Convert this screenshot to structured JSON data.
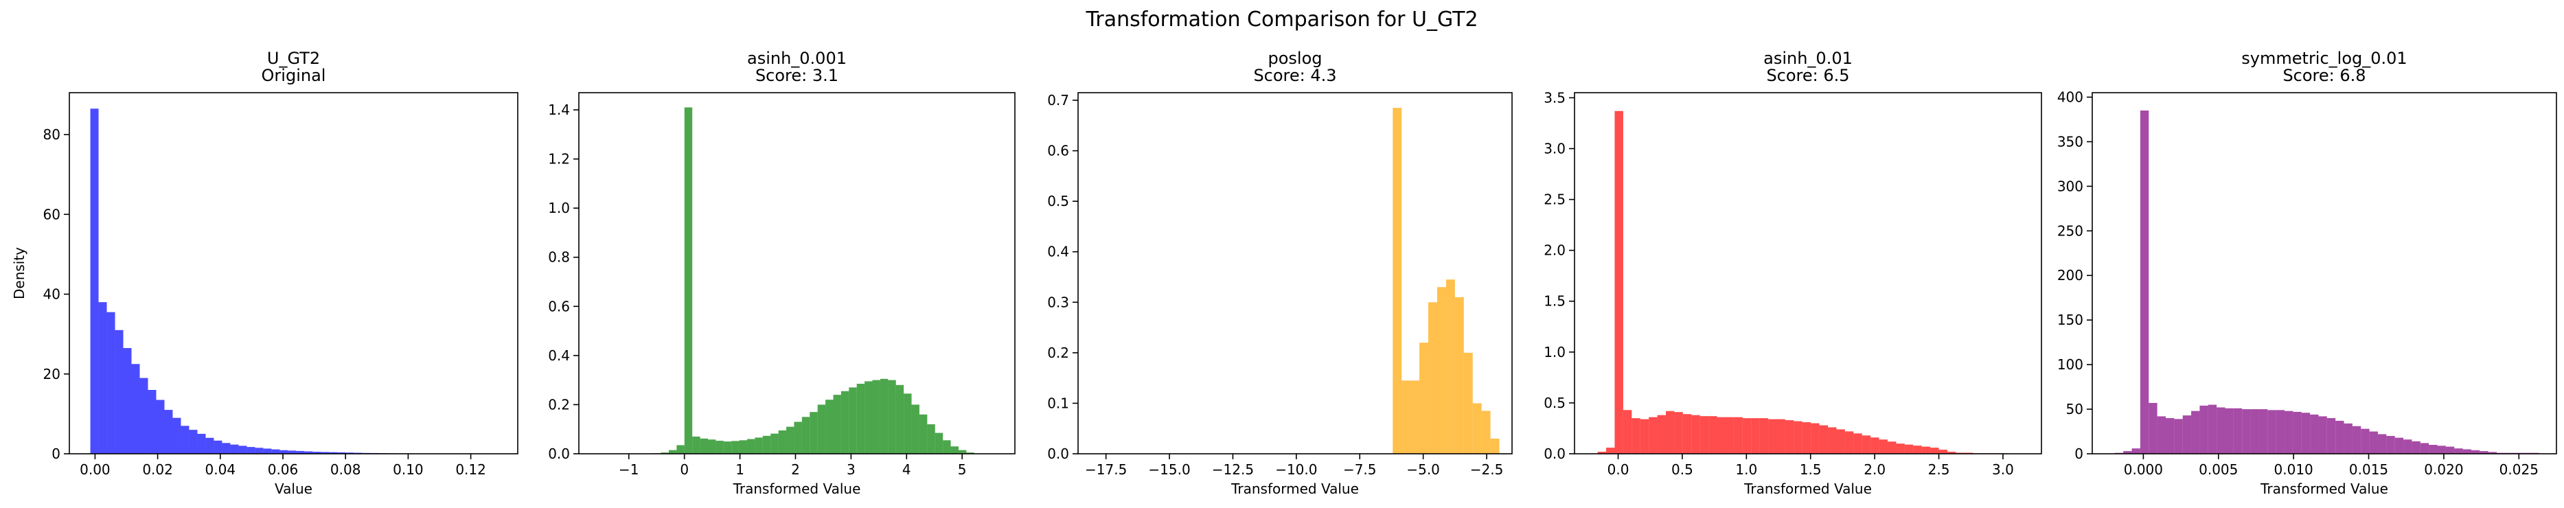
{
  "figure": {
    "suptitle": "Transformation Comparison for U_GT2"
  },
  "chart_data": [
    {
      "type": "bar",
      "title": "U_GT2\nOriginal",
      "xlabel": "Value",
      "ylabel": "Density",
      "color": "#0000ff",
      "xlim": [
        -0.0082,
        0.135
      ],
      "ylim": [
        0,
        90.5
      ],
      "xticks": [
        0.0,
        0.02,
        0.04,
        0.06,
        0.08,
        0.1,
        0.12
      ],
      "xtick_labels": [
        "0.00",
        "0.02",
        "0.04",
        "0.06",
        "0.08",
        "0.10",
        "0.12"
      ],
      "yticks": [
        0,
        20,
        40,
        60,
        80
      ],
      "ytick_labels": [
        "0",
        "20",
        "40",
        "60",
        "80"
      ],
      "bin_start": -0.0015,
      "bin_width": 0.00263,
      "values": [
        86.5,
        38.0,
        35.5,
        31.0,
        26.5,
        22.5,
        19.0,
        16.0,
        13.5,
        11.0,
        9.0,
        7.0,
        6.0,
        5.0,
        4.0,
        3.3,
        2.7,
        2.3,
        2.0,
        1.7,
        1.5,
        1.3,
        1.1,
        0.9,
        0.8,
        0.7,
        0.6,
        0.5,
        0.45,
        0.4,
        0.35,
        0.3,
        0.25,
        0.2,
        0.18,
        0.15,
        0.12,
        0.1,
        0.1,
        0.08,
        0.06,
        0.05,
        0.05,
        0.05,
        0.04,
        0.04,
        0.03,
        0.03,
        0.03,
        0.02
      ]
    },
    {
      "type": "bar",
      "title": "asinh_0.001\nScore: 3.1",
      "xlabel": "Transformed Value",
      "ylabel": "",
      "color": "#008000",
      "xlim": [
        -1.9,
        5.95
      ],
      "ylim": [
        0,
        1.47
      ],
      "xticks": [
        -1,
        0,
        1,
        2,
        3,
        4,
        5
      ],
      "xtick_labels": [
        "−1",
        "0",
        "1",
        "2",
        "3",
        "4",
        "5"
      ],
      "yticks": [
        0.0,
        0.2,
        0.4,
        0.6,
        0.8,
        1.0,
        1.2,
        1.4
      ],
      "ytick_labels": [
        "0.0",
        "0.2",
        "0.4",
        "0.6",
        "0.8",
        "1.0",
        "1.2",
        "1.4"
      ],
      "bin_start": -1.55,
      "bin_width": 0.141,
      "values": [
        0.0,
        0.0,
        0.0,
        0.0,
        0.0,
        0.0,
        0.0,
        0.002,
        0.005,
        0.015,
        0.035,
        1.41,
        0.07,
        0.062,
        0.058,
        0.053,
        0.05,
        0.052,
        0.055,
        0.06,
        0.066,
        0.073,
        0.082,
        0.095,
        0.11,
        0.13,
        0.15,
        0.17,
        0.2,
        0.22,
        0.24,
        0.255,
        0.27,
        0.285,
        0.295,
        0.3,
        0.305,
        0.3,
        0.28,
        0.245,
        0.2,
        0.16,
        0.12,
        0.085,
        0.055,
        0.03,
        0.015,
        0.005
      ]
    },
    {
      "type": "bar",
      "title": "poslog\nScore: 4.3",
      "xlabel": "Transformed Value",
      "ylabel": "",
      "color": "#ffa500",
      "xlim": [
        -18.6,
        -1.5
      ],
      "ylim": [
        0,
        0.715
      ],
      "xticks": [
        -17.5,
        -15.0,
        -12.5,
        -10.0,
        -7.5,
        -5.0,
        -2.5
      ],
      "xtick_labels": [
        "−17.5",
        "−15.0",
        "−12.5",
        "−10.0",
        "−7.5",
        "−5.0",
        "−2.5"
      ],
      "yticks": [
        0.0,
        0.1,
        0.2,
        0.3,
        0.4,
        0.5,
        0.6,
        0.7
      ],
      "ytick_labels": [
        "0.0",
        "0.1",
        "0.2",
        "0.3",
        "0.4",
        "0.5",
        "0.6",
        "0.7"
      ],
      "bin_start": -6.2,
      "bin_width": 0.35,
      "values": [
        0.685,
        0.145,
        0.145,
        0.22,
        0.3,
        0.33,
        0.345,
        0.31,
        0.2,
        0.1,
        0.085,
        0.03
      ]
    },
    {
      "type": "bar",
      "title": "asinh_0.01\nScore: 6.5",
      "xlabel": "Transformed Value",
      "ylabel": "",
      "color": "#ff0000",
      "xlim": [
        -0.34,
        3.3
      ],
      "ylim": [
        0,
        3.55
      ],
      "xticks": [
        0.0,
        0.5,
        1.0,
        1.5,
        2.0,
        2.5,
        3.0
      ],
      "xtick_labels": [
        "0.0",
        "0.5",
        "1.0",
        "1.5",
        "2.0",
        "2.5",
        "3.0"
      ],
      "yticks": [
        0.0,
        0.5,
        1.0,
        1.5,
        2.0,
        2.5,
        3.0,
        3.5
      ],
      "ytick_labels": [
        "0.0",
        "0.5",
        "1.0",
        "1.5",
        "2.0",
        "2.5",
        "3.0",
        "3.5"
      ],
      "bin_start": -0.16,
      "bin_width": 0.0665,
      "values": [
        0.02,
        0.06,
        3.37,
        0.43,
        0.35,
        0.34,
        0.36,
        0.38,
        0.42,
        0.41,
        0.39,
        0.38,
        0.37,
        0.37,
        0.36,
        0.36,
        0.36,
        0.35,
        0.35,
        0.35,
        0.34,
        0.34,
        0.33,
        0.32,
        0.31,
        0.3,
        0.28,
        0.26,
        0.24,
        0.22,
        0.2,
        0.18,
        0.16,
        0.14,
        0.12,
        0.1,
        0.09,
        0.08,
        0.07,
        0.06,
        0.04,
        0.02,
        0.01,
        0.01,
        0.005,
        0.005,
        0.005,
        0.005,
        0.002,
        0.002
      ]
    },
    {
      "type": "bar",
      "title": "symmetric_log_0.01\nScore: 6.8",
      "xlabel": "Transformed Value",
      "ylabel": "",
      "color": "#800080",
      "xlim": [
        -0.0034,
        0.0275
      ],
      "ylim": [
        0,
        405
      ],
      "xticks": [
        0.0,
        0.005,
        0.01,
        0.015,
        0.02,
        0.025
      ],
      "xtick_labels": [
        "0.000",
        "0.005",
        "0.010",
        "0.015",
        "0.020",
        "0.025"
      ],
      "yticks": [
        0,
        50,
        100,
        150,
        200,
        250,
        300,
        350,
        400
      ],
      "ytick_labels": [
        "0",
        "50",
        "100",
        "150",
        "200",
        "250",
        "300",
        "350",
        "400"
      ],
      "bin_start": -0.0019,
      "bin_width": 0.000565,
      "values": [
        1,
        3,
        6,
        385,
        57,
        42,
        40,
        39,
        43,
        48,
        54,
        55,
        52,
        51,
        51,
        50,
        50,
        50,
        49,
        49,
        48,
        47,
        46,
        44,
        42,
        40,
        37,
        34,
        31,
        28,
        25,
        22,
        20,
        18,
        16,
        14,
        12,
        10,
        9,
        8,
        6,
        5,
        4,
        3,
        2,
        1,
        1,
        1,
        1,
        1
      ]
    }
  ]
}
